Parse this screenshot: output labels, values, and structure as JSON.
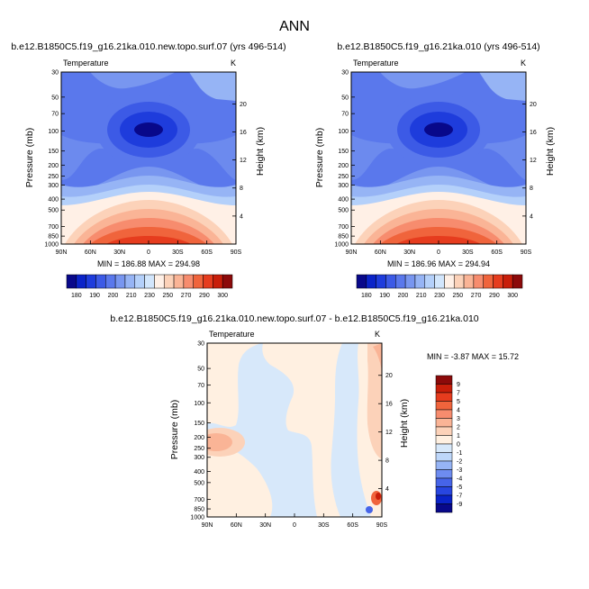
{
  "page_title": "ANN",
  "chart_data": [
    {
      "type": "heatmap",
      "title": "b.e12.B1850C5.f19_g16.21ka.010.new.topo.surf.07 (yrs 496-514)",
      "variable": "Temperature",
      "units": "K",
      "xlabel": "",
      "ylabel": "Pressure (mb)",
      "y2label": "Height (km)",
      "x_ticks": [
        "90N",
        "60N",
        "30N",
        "0",
        "30S",
        "60S",
        "90S"
      ],
      "y_ticks": [
        "30",
        "50",
        "70",
        "100",
        "150",
        "200",
        "250",
        "300",
        "400",
        "500",
        "700",
        "850",
        "1000"
      ],
      "y2_ticks": [
        "20",
        "16",
        "12",
        "8",
        "4"
      ],
      "stats": "MIN = 186.88   MAX = 294.98",
      "min": 186.88,
      "max": 294.98,
      "colorbar_labels": [
        "180",
        "190",
        "200",
        "210",
        "230",
        "250",
        "270",
        "290",
        "300"
      ]
    },
    {
      "type": "heatmap",
      "title": "b.e12.B1850C5.f19_g16.21ka.010 (yrs 496-514)",
      "variable": "Temperature",
      "units": "K",
      "xlabel": "",
      "ylabel": "Pressure (mb)",
      "y2label": "Height (km)",
      "x_ticks": [
        "90N",
        "60N",
        "30N",
        "0",
        "30S",
        "60S",
        "90S"
      ],
      "y_ticks": [
        "30",
        "50",
        "70",
        "100",
        "150",
        "200",
        "250",
        "300",
        "400",
        "500",
        "700",
        "850",
        "1000"
      ],
      "y2_ticks": [
        "20",
        "16",
        "12",
        "8",
        "4"
      ],
      "stats": "MIN = 186.96   MAX = 294.94",
      "min": 186.96,
      "max": 294.94,
      "colorbar_labels": [
        "180",
        "190",
        "200",
        "210",
        "230",
        "250",
        "270",
        "290",
        "300"
      ]
    },
    {
      "type": "heatmap",
      "title": "b.e12.B1850C5.f19_g16.21ka.010.new.topo.surf.07 - b.e12.B1850C5.f19_g16.21ka.010",
      "variable": "Temperature",
      "units": "K",
      "xlabel": "",
      "ylabel": "Pressure (mb)",
      "y2label": "Height (km)",
      "x_ticks": [
        "90N",
        "60N",
        "30N",
        "0",
        "30S",
        "60S",
        "90S"
      ],
      "y_ticks": [
        "30",
        "50",
        "70",
        "100",
        "150",
        "200",
        "250",
        "300",
        "400",
        "500",
        "700",
        "850",
        "1000"
      ],
      "y2_ticks": [
        "20",
        "16",
        "12",
        "8",
        "4"
      ],
      "stats": "MIN =  -3.87   MAX =  15.72",
      "min": -3.87,
      "max": 15.72,
      "colorbar_labels": [
        "9",
        "7",
        "5",
        "4",
        "3",
        "2",
        "1",
        "0",
        "-1",
        "-2",
        "-3",
        "-4",
        "-5",
        "-7",
        "-9"
      ]
    }
  ],
  "colors": {
    "abs_scale": [
      "#08088a",
      "#0a23c8",
      "#1e3cdc",
      "#3c5ae6",
      "#5a78ec",
      "#7896f0",
      "#96b4f5",
      "#b4d0fa",
      "#d2e6fc",
      "#fff0e6",
      "#fcd2b9",
      "#fab496",
      "#f78c6e",
      "#f0643c",
      "#e63c1e",
      "#c81e0a",
      "#8c0a0a"
    ],
    "diff_scale": [
      "#08088a",
      "#0a23c8",
      "#2846e0",
      "#4664e8",
      "#6e8cf0",
      "#96b4f5",
      "#bed7fa",
      "#d7e8fa",
      "#fff0e1",
      "#fcd2b9",
      "#fab496",
      "#f78c6e",
      "#f0643c",
      "#e63c1e",
      "#c81e0a",
      "#8c0a0a"
    ]
  }
}
